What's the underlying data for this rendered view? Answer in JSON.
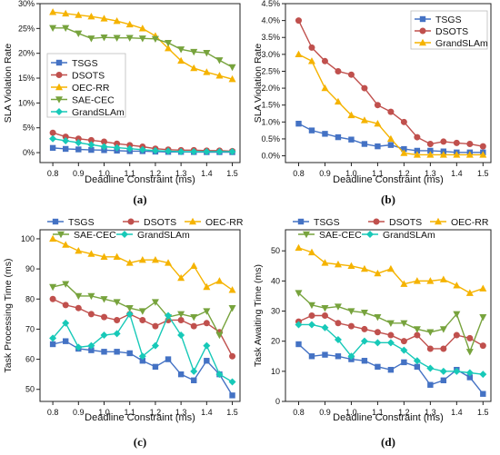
{
  "chart_data": [
    {
      "type": "line",
      "caption": "(a)",
      "xlabel": "Deadline Constraint (ms)",
      "ylabel": "SLA Violation Rate",
      "xlim": [
        0.75,
        1.53
      ],
      "ylim": [
        -0.02,
        0.3
      ],
      "xticks": [
        0.8,
        0.9,
        1.0,
        1.1,
        1.2,
        1.3,
        1.4,
        1.5
      ],
      "xtick_labels": [
        "0.8",
        "0.9",
        "1.0",
        "1.1",
        "1.2",
        "1.3",
        "1.4",
        "1.5"
      ],
      "yticks": [
        0,
        0.05,
        0.1,
        0.15,
        0.2,
        0.25,
        0.3
      ],
      "ytick_labels": [
        "0%",
        "5%",
        "10%",
        "15%",
        "20%",
        "25%",
        "30%"
      ],
      "legend": "middle-left",
      "x": [
        0.8,
        0.85,
        0.9,
        0.95,
        1.0,
        1.05,
        1.1,
        1.15,
        1.2,
        1.25,
        1.3,
        1.35,
        1.4,
        1.45,
        1.5
      ],
      "series": [
        {
          "name": "TSGS",
          "color": "#4472c4",
          "marker": "square",
          "values": [
            0.0095,
            0.0075,
            0.0065,
            0.0055,
            0.005,
            0.004,
            0.003,
            0.003,
            0.002,
            0.0015,
            0.0015,
            0.0012,
            0.001,
            0.001,
            0.001
          ]
        },
        {
          "name": "DSOTS",
          "color": "#c0504d",
          "marker": "circle",
          "values": [
            0.04,
            0.032,
            0.028,
            0.025,
            0.022,
            0.018,
            0.015,
            0.012,
            0.008,
            0.006,
            0.005,
            0.005,
            0.004,
            0.004,
            0.003
          ]
        },
        {
          "name": "OEC-RR",
          "color": "#f5b300",
          "marker": "triangle-up",
          "values": [
            0.283,
            0.28,
            0.277,
            0.274,
            0.27,
            0.265,
            0.258,
            0.25,
            0.235,
            0.21,
            0.185,
            0.17,
            0.162,
            0.155,
            0.148
          ]
        },
        {
          "name": "SAE-CEC",
          "color": "#77a33d",
          "marker": "triangle-down",
          "values": [
            0.251,
            0.251,
            0.24,
            0.23,
            0.232,
            0.231,
            0.231,
            0.23,
            0.229,
            0.221,
            0.208,
            0.203,
            0.201,
            0.186,
            0.172
          ]
        },
        {
          "name": "GrandSLAm",
          "color": "#17c9b8",
          "marker": "diamond",
          "values": [
            0.028,
            0.024,
            0.02,
            0.016,
            0.012,
            0.01,
            0.008,
            0.006,
            0.004,
            0.003,
            0.002,
            0.002,
            0.002,
            0.002,
            0.002
          ]
        }
      ]
    },
    {
      "type": "line",
      "caption": "(b)",
      "xlabel": "Deadline Constraint (ms)",
      "ylabel": "SLA Violation Rate",
      "xlim": [
        0.75,
        1.53
      ],
      "ylim": [
        -0.002,
        0.045
      ],
      "xticks": [
        0.8,
        0.9,
        1.0,
        1.1,
        1.2,
        1.3,
        1.4,
        1.5
      ],
      "xtick_labels": [
        "0.8",
        "0.9",
        "1.0",
        "1.1",
        "1.2",
        "1.3",
        "1.4",
        "1.5"
      ],
      "yticks": [
        0,
        0.005,
        0.01,
        0.015,
        0.02,
        0.025,
        0.03,
        0.035,
        0.04,
        0.045
      ],
      "ytick_labels": [
        "0.0%",
        "0.5%",
        "1.0%",
        "1.5%",
        "2.0%",
        "2.5%",
        "3.0%",
        "3.5%",
        "4.0%",
        "4.5%"
      ],
      "legend": "top-right",
      "x": [
        0.8,
        0.85,
        0.9,
        0.95,
        1.0,
        1.05,
        1.1,
        1.15,
        1.2,
        1.25,
        1.3,
        1.35,
        1.4,
        1.45,
        1.5
      ],
      "series": [
        {
          "name": "TSGS",
          "color": "#4472c4",
          "marker": "square",
          "values": [
            0.0095,
            0.0075,
            0.0065,
            0.0055,
            0.0048,
            0.0035,
            0.0028,
            0.0032,
            0.002,
            0.0015,
            0.0015,
            0.0013,
            0.001,
            0.001,
            0.001
          ]
        },
        {
          "name": "DSOTS",
          "color": "#c0504d",
          "marker": "circle",
          "values": [
            0.04,
            0.032,
            0.028,
            0.025,
            0.024,
            0.02,
            0.015,
            0.013,
            0.01,
            0.0055,
            0.0035,
            0.0042,
            0.0038,
            0.0035,
            0.0028
          ]
        },
        {
          "name": "GrandSLAm",
          "color": "#f5b300",
          "marker": "triangle-up",
          "values": [
            0.03,
            0.028,
            0.02,
            0.016,
            0.012,
            0.0105,
            0.0095,
            0.005,
            0.0008,
            0.0003,
            0.0003,
            0.0003,
            0.0003,
            0.0003,
            0.0003
          ]
        }
      ]
    },
    {
      "type": "line",
      "caption": "(c)",
      "xlabel": "Deadline Constraint (ms)",
      "ylabel": "Task Processing Time (ms)",
      "xlim": [
        0.75,
        1.53
      ],
      "ylim": [
        46,
        103
      ],
      "xticks": [
        0.8,
        0.9,
        1.0,
        1.1,
        1.2,
        1.3,
        1.4,
        1.5
      ],
      "xtick_labels": [
        "0.8",
        "0.9",
        "1.0",
        "1.1",
        "1.2",
        "1.3",
        "1.4",
        "1.5"
      ],
      "yticks": [
        50,
        60,
        70,
        80,
        90,
        100
      ],
      "ytick_labels": [
        "50",
        "60",
        "70",
        "80",
        "90",
        "100"
      ],
      "legend": "top",
      "x": [
        0.8,
        0.85,
        0.9,
        0.95,
        1.0,
        1.05,
        1.1,
        1.15,
        1.2,
        1.25,
        1.3,
        1.35,
        1.4,
        1.45,
        1.5
      ],
      "series": [
        {
          "name": "TSGS",
          "color": "#4472c4",
          "marker": "square",
          "values": [
            65,
            66,
            63.5,
            63,
            62.5,
            62.5,
            62,
            59.5,
            57.5,
            60,
            55,
            53,
            59.5,
            55,
            48
          ]
        },
        {
          "name": "DSOTS",
          "color": "#c0504d",
          "marker": "circle",
          "values": [
            80,
            78,
            77,
            75,
            74,
            73,
            75,
            73,
            71,
            73,
            73,
            71,
            72,
            69,
            61
          ]
        },
        {
          "name": "OEC-RR",
          "color": "#f5b300",
          "marker": "triangle-up",
          "values": [
            100,
            98,
            96,
            95,
            94,
            94,
            92,
            93,
            93,
            92,
            87,
            91,
            84,
            86,
            83
          ]
        },
        {
          "name": "SAE-CEC",
          "color": "#77a33d",
          "marker": "triangle-down",
          "values": [
            84,
            85,
            81,
            81,
            80,
            79,
            77,
            76,
            79,
            74,
            75,
            74,
            76,
            68,
            77
          ]
        },
        {
          "name": "GrandSLAm",
          "color": "#17c9b8",
          "marker": "diamond",
          "values": [
            67,
            72,
            64,
            64.5,
            68,
            68.5,
            75,
            61,
            64.5,
            74.5,
            68,
            56,
            64.5,
            55,
            52.5
          ]
        }
      ]
    },
    {
      "type": "line",
      "caption": "(d)",
      "xlabel": "Deadline Constraint (ms)",
      "ylabel": "Task Awaiting Time (ms)",
      "xlim": [
        0.75,
        1.53
      ],
      "ylim": [
        0,
        57
      ],
      "xticks": [
        0.8,
        0.9,
        1.0,
        1.1,
        1.2,
        1.3,
        1.4,
        1.5
      ],
      "xtick_labels": [
        "0.8",
        "0.9",
        "1.0",
        "1.1",
        "1.2",
        "1.3",
        "1.4",
        "1.5"
      ],
      "yticks": [
        0,
        10,
        20,
        30,
        40,
        50
      ],
      "ytick_labels": [
        "0",
        "10",
        "20",
        "30",
        "40",
        "50"
      ],
      "legend": "top",
      "x": [
        0.8,
        0.85,
        0.9,
        0.95,
        1.0,
        1.05,
        1.1,
        1.15,
        1.2,
        1.25,
        1.3,
        1.35,
        1.4,
        1.45,
        1.5
      ],
      "series": [
        {
          "name": "TSGS",
          "color": "#4472c4",
          "marker": "square",
          "values": [
            19,
            15,
            15.5,
            15,
            14,
            13.5,
            11.5,
            10.5,
            13,
            11.5,
            5.5,
            7,
            10.5,
            8,
            2.5
          ]
        },
        {
          "name": "DSOTS",
          "color": "#c0504d",
          "marker": "circle",
          "values": [
            26.5,
            28.5,
            28.5,
            26,
            25,
            24,
            23,
            22,
            20,
            22,
            17.5,
            17.5,
            22,
            21,
            18.5
          ]
        },
        {
          "name": "OEC-RR",
          "color": "#f5b300",
          "marker": "triangle-up",
          "values": [
            51,
            49.5,
            46,
            45.5,
            45,
            44,
            42.5,
            44,
            39,
            40,
            40,
            40.5,
            38.5,
            36,
            37.5
          ]
        },
        {
          "name": "SAE-CEC",
          "color": "#77a33d",
          "marker": "triangle-down",
          "values": [
            36,
            32,
            31,
            31.5,
            30,
            29.5,
            28,
            26,
            26,
            24,
            23,
            24,
            29,
            16.5,
            28
          ]
        },
        {
          "name": "GrandSLAm",
          "color": "#17c9b8",
          "marker": "diamond",
          "values": [
            25.5,
            25.5,
            24.5,
            20.5,
            15,
            20,
            19.5,
            19.5,
            17,
            13.5,
            11,
            10,
            10,
            9.5,
            9
          ]
        }
      ]
    }
  ]
}
